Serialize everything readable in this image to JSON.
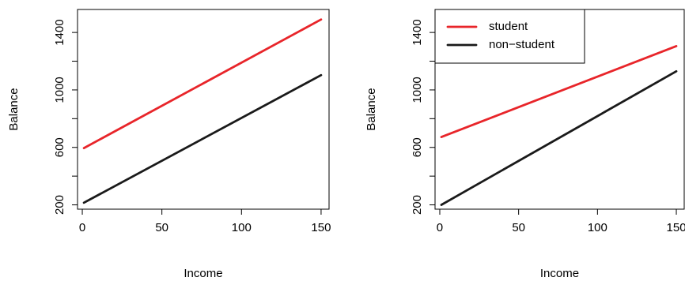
{
  "chart_data": [
    {
      "type": "line",
      "xlabel": "Income",
      "ylabel": "Balance",
      "xlim": [
        -3,
        155
      ],
      "ylim": [
        170,
        1560
      ],
      "xticks": [
        0,
        50,
        100,
        150
      ],
      "yticks": [
        200,
        600,
        1000,
        1400
      ],
      "yticks_minor": [
        400,
        800,
        1200
      ],
      "series": [
        {
          "color": "#e8252a",
          "x": [
            1,
            150
          ],
          "y": [
            595,
            1490
          ]
        },
        {
          "color": "#1a1a1a",
          "x": [
            1,
            150
          ],
          "y": [
            215,
            1103
          ]
        }
      ],
      "legend": null
    },
    {
      "type": "line",
      "xlabel": "Income",
      "ylabel": "Balance",
      "xlim": [
        -3,
        155
      ],
      "ylim": [
        170,
        1560
      ],
      "xticks": [
        0,
        50,
        100,
        150
      ],
      "yticks": [
        200,
        600,
        1000,
        1400
      ],
      "yticks_minor": [
        400,
        800,
        1200
      ],
      "series": [
        {
          "name": "student",
          "color": "#e8252a",
          "x": [
            1,
            150
          ],
          "y": [
            672,
            1305
          ]
        },
        {
          "name": "non−student",
          "color": "#1a1a1a",
          "x": [
            1,
            150
          ],
          "y": [
            200,
            1130
          ]
        }
      ],
      "legend": {
        "placement": "top-left",
        "entries": [
          "student",
          "non−student"
        ]
      }
    }
  ]
}
